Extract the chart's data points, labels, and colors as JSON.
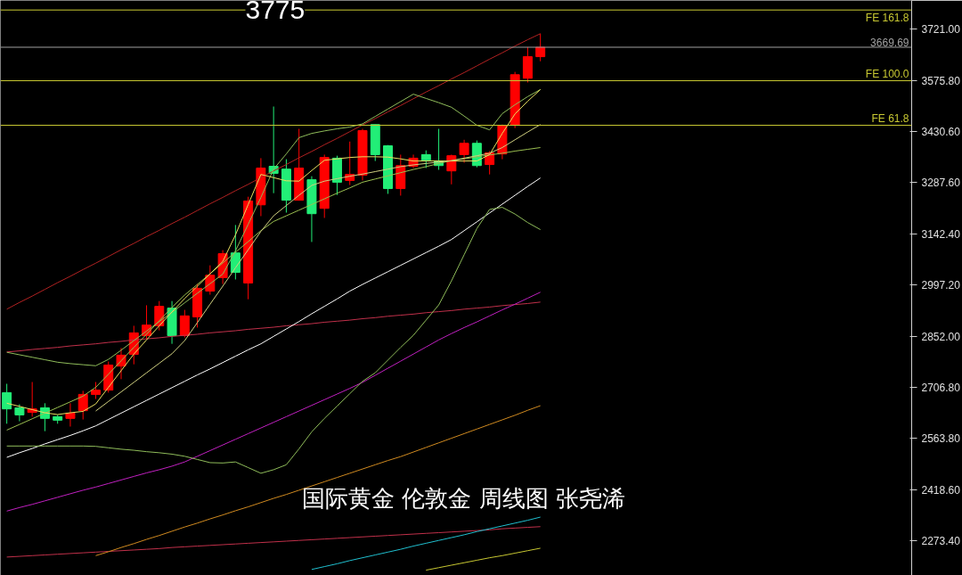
{
  "chart_data": {
    "type": "candlestick",
    "annotations": [
      {
        "text": "3775",
        "y": 3775
      },
      "国际黄金 伦敦金 周线图 张尧浠"
    ],
    "categories": [
      null,
      null,
      null,
      null,
      null,
      null,
      null,
      null,
      null,
      null,
      null,
      null,
      null,
      null,
      null,
      null,
      null,
      null,
      null,
      null,
      null,
      null,
      null,
      null,
      null,
      null,
      null,
      null,
      null,
      null,
      null,
      null,
      null,
      null,
      null,
      null,
      null,
      null,
      null,
      null,
      null,
      null,
      null
    ],
    "ohlc": [
      [
        2693,
        2718,
        2605,
        2647
      ],
      [
        2650,
        2660,
        2612,
        2630
      ],
      [
        2637,
        2723,
        2625,
        2647
      ],
      [
        2650,
        2663,
        2584,
        2620
      ],
      [
        2625,
        2630,
        2605,
        2615
      ],
      [
        2620,
        2663,
        2597,
        2635
      ],
      [
        2642,
        2698,
        2617,
        2688
      ],
      [
        2688,
        2723,
        2675,
        2700
      ],
      [
        2700,
        2781,
        2693,
        2771
      ],
      [
        2768,
        2819,
        2731,
        2799
      ],
      [
        2801,
        2882,
        2773,
        2862
      ],
      [
        2854,
        2940,
        2844,
        2884
      ],
      [
        2882,
        2952,
        2869,
        2937
      ],
      [
        2932,
        2952,
        2831,
        2854
      ],
      [
        2854,
        2927,
        2849,
        2910
      ],
      [
        2907,
        3000,
        2877,
        2988
      ],
      [
        2980,
        3053,
        2970,
        3025
      ],
      [
        3018,
        3096,
        3000,
        3086
      ],
      [
        3088,
        3167,
        3013,
        3033
      ],
      [
        3003,
        3247,
        2957,
        3235
      ],
      [
        3224,
        3356,
        3192,
        3328
      ],
      [
        3333,
        3502,
        3257,
        3313
      ],
      [
        3325,
        3353,
        3202,
        3237
      ],
      [
        3237,
        3439,
        3237,
        3328
      ],
      [
        3295,
        3305,
        3119,
        3199
      ],
      [
        3214,
        3366,
        3187,
        3358
      ],
      [
        3356,
        3363,
        3252,
        3288
      ],
      [
        3293,
        3403,
        3280,
        3310
      ],
      [
        3308,
        3439,
        3293,
        3434
      ],
      [
        3451,
        3451,
        3348,
        3366
      ],
      [
        3391,
        3393,
        3255,
        3270
      ],
      [
        3270,
        3366,
        3250,
        3335
      ],
      [
        3333,
        3366,
        3328,
        3356
      ],
      [
        3366,
        3378,
        3328,
        3350
      ],
      [
        3348,
        3439,
        3323,
        3335
      ],
      [
        3320,
        3366,
        3282,
        3363
      ],
      [
        3366,
        3408,
        3343,
        3398
      ],
      [
        3398,
        3406,
        3330,
        3335
      ],
      [
        3338,
        3376,
        3310,
        3371
      ],
      [
        3368,
        3451,
        3353,
        3449
      ],
      [
        3449,
        3600,
        3441,
        3592
      ],
      [
        3582,
        3670,
        3570,
        3643
      ],
      [
        3643,
        3708,
        3630,
        3669.69
      ]
    ],
    "colors": [
      "#22ee77",
      "#22ee77",
      "#ff0000",
      "#22ee77",
      "#22ee77",
      "#ff0000",
      "#ff0000",
      "#ff0000",
      "#ff0000",
      "#ff0000",
      "#ff0000",
      "#ff0000",
      "#ff0000",
      "#22ee77",
      "#ff0000",
      "#ff0000",
      "#ff0000",
      "#ff0000",
      "#22ee77",
      "#ff0000",
      "#ff0000",
      "#22ee77",
      "#22ee77",
      "#ff0000",
      "#22ee77",
      "#ff0000",
      "#22ee77",
      "#ff0000",
      "#ff0000",
      "#22ee77",
      "#22ee77",
      "#ff0000",
      "#ff0000",
      "#22ee77",
      "#22ee77",
      "#ff0000",
      "#ff0000",
      "#22ee77",
      "#ff0000",
      "#ff0000",
      "#ff0000",
      "#ff0000",
      "#ff0000"
    ],
    "series": [
      {
        "type": "line",
        "color": "#b22222",
        "values": [
          2929,
          2948,
          2966,
          2985,
          3004,
          3022,
          3041,
          3059,
          3078,
          3097,
          3115,
          3134,
          3152,
          3171,
          3189,
          3208,
          3227,
          3245,
          3264,
          3282,
          3301,
          3320,
          3338,
          3357,
          3375,
          3394,
          3412,
          3431,
          3450,
          3468,
          3487,
          3505,
          3524,
          3543,
          3561,
          3580,
          3598,
          3617,
          3636,
          3654,
          3673,
          3691,
          3708
        ]
      },
      {
        "type": "line",
        "color": "#c0304a",
        "values": [
          2808,
          2811,
          2815,
          2818,
          2821,
          2825,
          2828,
          2831,
          2835,
          2838,
          2842,
          2845,
          2848,
          2852,
          2855,
          2858,
          2862,
          2865,
          2868,
          2872,
          2875,
          2878,
          2882,
          2885,
          2888,
          2892,
          2895,
          2898,
          2902,
          2905,
          2909,
          2912,
          2915,
          2919,
          2922,
          2925,
          2929,
          2932,
          2935,
          2939,
          2942,
          2945,
          2949
        ]
      },
      {
        "type": "line",
        "color": "#c0304a",
        "values": [
          2228,
          2230,
          2232,
          2234,
          2236,
          2238,
          2240,
          2242,
          2244,
          2246,
          2248,
          2250,
          2252,
          2255,
          2257,
          2259,
          2261,
          2263,
          2265,
          2267,
          2269,
          2271,
          2273,
          2275,
          2277,
          2279,
          2281,
          2283,
          2285,
          2287,
          2289,
          2291,
          2293,
          2295,
          2297,
          2299,
          2301,
          2303,
          2305,
          2308,
          2310,
          2312,
          2314
        ]
      },
      {
        "type": "line",
        "color": "#ffffff",
        "values": [
          2510,
          2523,
          2535,
          2548,
          2560,
          2572,
          2585,
          2599,
          2617,
          2635,
          2653,
          2671,
          2689,
          2707,
          2725,
          2743,
          2760,
          2778,
          2796,
          2814,
          2831,
          2852,
          2873,
          2894,
          2916,
          2937,
          2958,
          2980,
          2999,
          3017,
          3035,
          3053,
          3071,
          3089,
          3107,
          3126,
          3151,
          3176,
          3201,
          3226,
          3251,
          3276,
          3300
        ]
      },
      {
        "type": "line",
        "color": "#c020c0",
        "values": [
          2358,
          2368,
          2377,
          2387,
          2397,
          2407,
          2417,
          2426,
          2436,
          2446,
          2456,
          2466,
          2475,
          2485,
          2497,
          2513,
          2529,
          2545,
          2561,
          2577,
          2593,
          2609,
          2625,
          2641,
          2657,
          2673,
          2689,
          2705,
          2722,
          2742,
          2762,
          2782,
          2802,
          2822,
          2842,
          2860,
          2877,
          2893,
          2910,
          2927,
          2943,
          2960,
          2977
        ]
      },
      {
        "type": "line",
        "color": "#d08a20",
        "values": [
          null,
          null,
          null,
          null,
          null,
          null,
          null,
          2232,
          2243,
          2255,
          2266,
          2278,
          2289,
          2301,
          2313,
          2324,
          2336,
          2347,
          2359,
          2370,
          2382,
          2394,
          2405,
          2417,
          2429,
          2441,
          2453,
          2465,
          2477,
          2489,
          2501,
          2512,
          2525,
          2538,
          2551,
          2564,
          2577,
          2590,
          2603,
          2616,
          2629,
          2643,
          2656
        ]
      },
      {
        "type": "line",
        "color": "#20c0d0",
        "values": [
          null,
          null,
          null,
          null,
          null,
          null,
          null,
          null,
          null,
          null,
          null,
          null,
          null,
          null,
          null,
          null,
          null,
          null,
          null,
          null,
          null,
          null,
          null,
          null,
          2193,
          2201,
          2209,
          2218,
          2226,
          2234,
          2242,
          2250,
          2259,
          2267,
          2275,
          2283,
          2291,
          2300,
          2308,
          2316,
          2324,
          2332,
          2341
        ]
      },
      {
        "type": "line",
        "color": "#c8c832",
        "values": [
          null,
          null,
          null,
          null,
          null,
          null,
          null,
          null,
          null,
          null,
          null,
          null,
          null,
          null,
          null,
          null,
          null,
          null,
          null,
          null,
          null,
          null,
          null,
          null,
          null,
          null,
          null,
          null,
          null,
          null,
          null,
          null,
          null,
          2191,
          2198,
          2205,
          2212,
          2219,
          2226,
          2232,
          2239,
          2246,
          2253
        ]
      },
      {
        "type": "line",
        "color": "#8fbc5a",
        "values": [
          2542,
          2542,
          2542,
          2542,
          2542,
          2542,
          2542,
          2541,
          2537,
          2533,
          2530,
          2526,
          2523,
          2519,
          2513,
          2504,
          2495,
          2494,
          2497,
          2481,
          2465,
          2475,
          2489,
          2534,
          2582,
          2620,
          2655,
          2690,
          2725,
          2749,
          2785,
          2821,
          2855,
          2898,
          2941,
          3009,
          3083,
          3157,
          3211,
          3217,
          3198,
          3174,
          3154
        ]
      },
      {
        "type": "line",
        "color": "#8fbc5a",
        "values": [
          2807,
          2800,
          2793,
          2786,
          2779,
          2775,
          2772,
          2769,
          2787,
          2813,
          2840,
          2867,
          2894,
          2920,
          2947,
          2974,
          3001,
          3028,
          3094,
          3169,
          3245,
          3325,
          3368,
          3414,
          3426,
          3433,
          3439,
          3444,
          3453,
          3474,
          3495,
          3516,
          3537,
          3525,
          3513,
          3500,
          3475,
          3449,
          3436,
          3482,
          3507,
          3530,
          3550
        ]
      },
      {
        "type": "line",
        "color": "#9abf50",
        "values": [
          2587,
          2603,
          2619,
          2635,
          2651,
          2667,
          2683,
          2708,
          2745,
          2783,
          2821,
          2858,
          2896,
          2934,
          2969,
          2999,
          3029,
          3060,
          3090,
          3120,
          3151,
          3177,
          3193,
          3209,
          3225,
          3241,
          3257,
          3272,
          3288,
          3297,
          3306,
          3315,
          3324,
          3332,
          3341,
          3349,
          3354,
          3360,
          3365,
          3370,
          3376,
          3381,
          3386
        ]
      },
      {
        "type": "line",
        "color": "#e8e060",
        "values": [
          2663,
          2654,
          2645,
          2636,
          2631,
          2636,
          2640,
          2661,
          2708,
          2755,
          2802,
          2842,
          2882,
          2921,
          2959,
          2994,
          3029,
          3064,
          3139,
          3225,
          3310,
          3301,
          3292,
          3291,
          3321,
          3350,
          3354,
          3358,
          3360,
          3360,
          3359,
          3354,
          3348,
          3348,
          3348,
          3348,
          3348,
          3348,
          3366,
          3426,
          3481,
          3517,
          3550
        ]
      },
      {
        "type": "line",
        "color": "#d0d080",
        "values": [
          null,
          null,
          null,
          null,
          null,
          null,
          null,
          2641,
          2668,
          2695,
          2722,
          2749,
          2776,
          2803,
          2840,
          2891,
          2943,
          2994,
          3046,
          3097,
          3149,
          3193,
          3222,
          3251,
          3279,
          3291,
          3298,
          3305,
          3311,
          3318,
          3325,
          3332,
          3337,
          3341,
          3345,
          3349,
          3356,
          3363,
          3370,
          3386,
          3408,
          3430,
          3451
        ]
      }
    ],
    "ref_lines": [
      {
        "axis": "y",
        "value": 3775,
        "label": "FE 161.8",
        "color": "#c8c832"
      },
      {
        "axis": "y",
        "value": 3575,
        "label": "FE 100.0",
        "color": "#c8c832"
      },
      {
        "axis": "y",
        "value": 3449,
        "label": "FE 61.8",
        "color": "#c8c832"
      },
      {
        "axis": "y",
        "value": 3669.69,
        "label": "3669.69",
        "color": "#a0a0a0"
      }
    ],
    "ylim": [
      2176,
      3802
    ],
    "yticks": [
      {
        "value": 3721,
        "label": "3721.00"
      },
      {
        "value": 3575.8,
        "label": "3575.80"
      },
      {
        "value": 3430.6,
        "label": "3430.60"
      },
      {
        "value": 3287.6,
        "label": "3287.60"
      },
      {
        "value": 3142.4,
        "label": "3142.40"
      },
      {
        "value": 2997.2,
        "label": "2997.20"
      },
      {
        "value": 2852,
        "label": "2852.00"
      },
      {
        "value": 2706.8,
        "label": "2706.80"
      },
      {
        "value": 2563.8,
        "label": "2563.80"
      },
      {
        "value": 2418.6,
        "label": "2418.60"
      },
      {
        "value": 2273.4,
        "label": "2273.40"
      }
    ],
    "tick_labels": "y"
  }
}
